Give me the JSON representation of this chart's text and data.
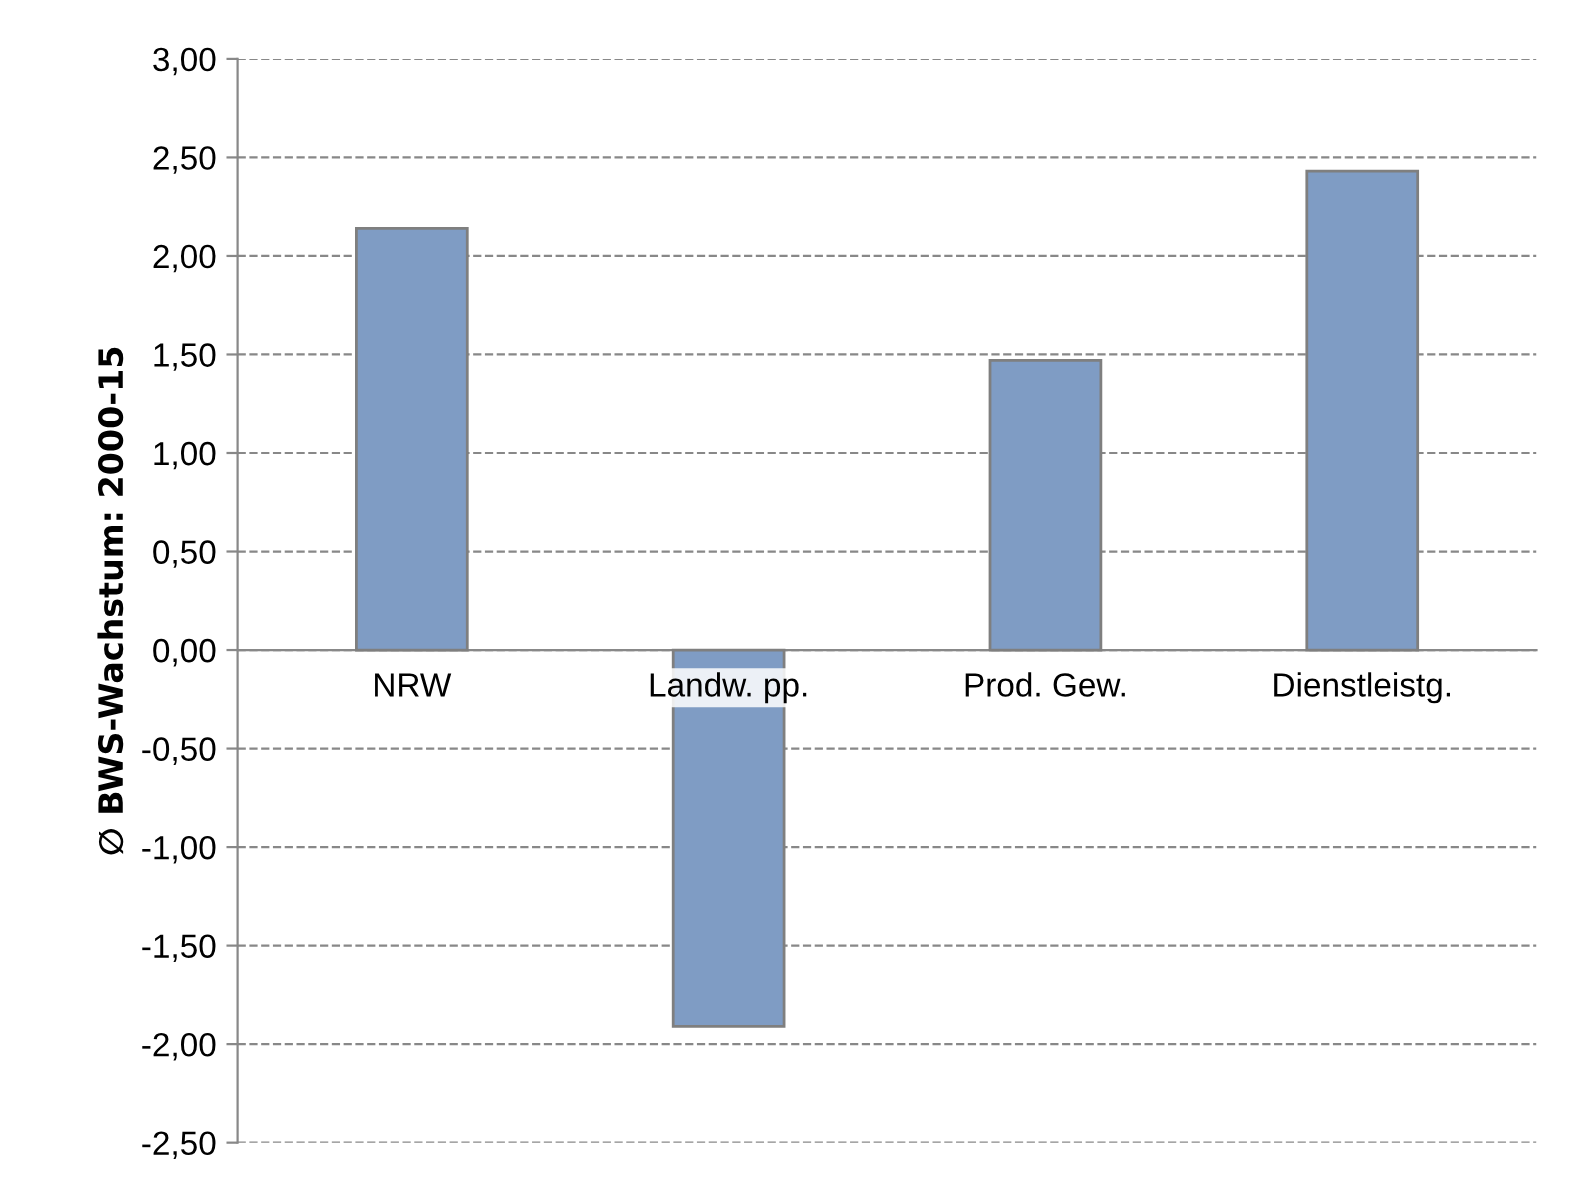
{
  "chart_data": {
    "type": "bar",
    "ylabel": "∅ BWS-Wachstum: 2000-15",
    "categories": [
      "NRW",
      "Landw. pp.",
      "Prod. Gew.",
      "Dienstleistg."
    ],
    "values": [
      2.14,
      -1.91,
      1.47,
      2.43
    ],
    "color": "#7f9cc4",
    "ylim": [
      -2.5,
      3
    ],
    "yticks": [
      {
        "value": -2.5,
        "label": "-2,50"
      },
      {
        "value": -2,
        "label": "-2,00"
      },
      {
        "value": -1.5,
        "label": "-1,50"
      },
      {
        "value": -1,
        "label": "-1,00"
      },
      {
        "value": -0.5,
        "label": "-0,50"
      },
      {
        "value": 0,
        "label": "0,00"
      },
      {
        "value": 0.5,
        "label": "0,50"
      },
      {
        "value": 1,
        "label": "1,00"
      },
      {
        "value": 1.5,
        "label": "1,50"
      },
      {
        "value": 2,
        "label": "2,00"
      },
      {
        "value": 2.5,
        "label": "2,50"
      },
      {
        "value": 3,
        "label": "3,00"
      }
    ],
    "grid": "y"
  }
}
